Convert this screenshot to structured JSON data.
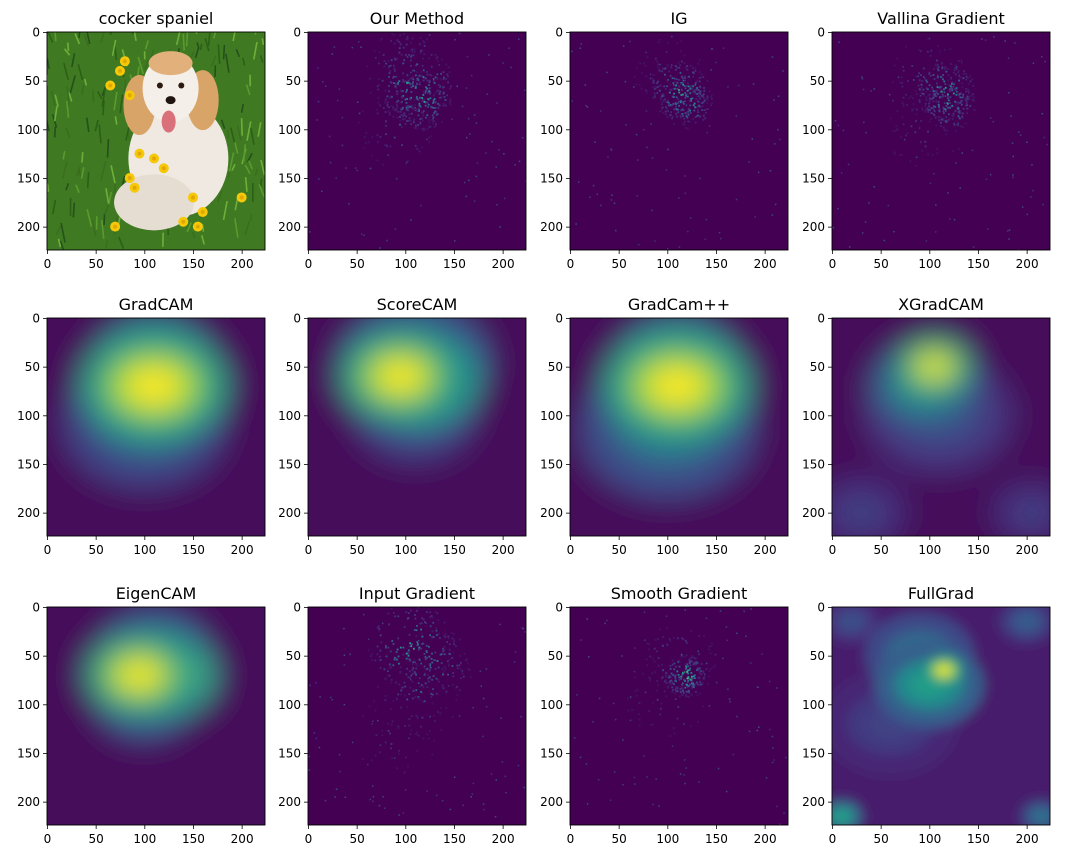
{
  "figure": {
    "panels": [
      {
        "title": "cocker spaniel",
        "kind": "photo"
      },
      {
        "title": "Our Method",
        "kind": "sparse",
        "blobs": [
          [
            110,
            55,
            18,
            0.9
          ],
          [
            115,
            70,
            14,
            0.8
          ],
          [
            100,
            40,
            20,
            0.5
          ],
          [
            90,
            100,
            18,
            0.35
          ]
        ]
      },
      {
        "title": "IG",
        "kind": "sparse",
        "blobs": [
          [
            112,
            60,
            14,
            0.85
          ],
          [
            120,
            72,
            12,
            0.7
          ],
          [
            100,
            40,
            16,
            0.35
          ]
        ]
      },
      {
        "title": "Vallina Gradient",
        "kind": "sparse",
        "blobs": [
          [
            115,
            60,
            14,
            0.9
          ],
          [
            120,
            75,
            12,
            0.7
          ],
          [
            100,
            45,
            18,
            0.4
          ],
          [
            95,
            100,
            18,
            0.25
          ]
        ]
      },
      {
        "title": "GradCAM",
        "kind": "cam",
        "blobs": [
          [
            110,
            70,
            55,
            1.0
          ],
          [
            95,
            80,
            40,
            0.9
          ],
          [
            110,
            45,
            45,
            0.6
          ],
          [
            100,
            110,
            60,
            0.35
          ]
        ]
      },
      {
        "title": "ScoreCAM",
        "kind": "cam",
        "blobs": [
          [
            95,
            60,
            45,
            1.0
          ],
          [
            115,
            65,
            45,
            0.9
          ],
          [
            110,
            45,
            55,
            0.5
          ],
          [
            110,
            100,
            45,
            0.3
          ]
        ]
      },
      {
        "title": "GradCam++",
        "kind": "cam",
        "blobs": [
          [
            110,
            70,
            55,
            1.0
          ],
          [
            95,
            80,
            40,
            0.9
          ],
          [
            110,
            45,
            45,
            0.55
          ],
          [
            100,
            115,
            65,
            0.4
          ]
        ]
      },
      {
        "title": "XGradCAM",
        "kind": "cam",
        "blobs": [
          [
            105,
            50,
            28,
            1.0
          ],
          [
            95,
            70,
            40,
            0.55
          ],
          [
            110,
            100,
            55,
            0.25
          ],
          [
            30,
            200,
            35,
            0.2
          ],
          [
            205,
            200,
            30,
            0.2
          ]
        ]
      },
      {
        "title": "EigenCAM",
        "kind": "cam",
        "blobs": [
          [
            95,
            70,
            40,
            1.0
          ],
          [
            120,
            70,
            40,
            0.95
          ],
          [
            110,
            45,
            40,
            0.45
          ],
          [
            100,
            100,
            35,
            0.4
          ]
        ]
      },
      {
        "title": "Input Gradient",
        "kind": "sparse",
        "blobs": [
          [
            105,
            40,
            20,
            0.8
          ],
          [
            130,
            60,
            18,
            0.6
          ],
          [
            110,
            90,
            20,
            0.4
          ],
          [
            90,
            130,
            20,
            0.25
          ]
        ]
      },
      {
        "title": "Smooth Gradient",
        "kind": "sparse",
        "blobs": [
          [
            118,
            70,
            10,
            0.95
          ],
          [
            110,
            55,
            18,
            0.4
          ],
          [
            100,
            90,
            20,
            0.25
          ]
        ]
      },
      {
        "title": "FullGrad",
        "kind": "smooth",
        "blobs": [
          [
            115,
            65,
            14,
            1.0
          ],
          [
            100,
            80,
            40,
            0.55
          ],
          [
            90,
            50,
            40,
            0.4
          ],
          [
            60,
            120,
            50,
            0.2
          ],
          [
            10,
            215,
            15,
            0.6
          ],
          [
            215,
            215,
            15,
            0.4
          ],
          [
            200,
            15,
            20,
            0.3
          ],
          [
            20,
            15,
            20,
            0.25
          ]
        ]
      }
    ],
    "xticks": [
      "0",
      "50",
      "100",
      "150",
      "200"
    ],
    "yticks": [
      "0",
      "50",
      "100",
      "150",
      "200"
    ]
  },
  "chart_data": {
    "type": "heatmap",
    "grid": {
      "rows": 3,
      "cols": 4
    },
    "image_size": [
      224,
      224
    ],
    "subplot_titles": [
      "cocker spaniel",
      "Our Method",
      "IG",
      "Vallina Gradient",
      "GradCAM",
      "ScoreCAM",
      "GradCam++",
      "XGradCAM",
      "EigenCAM",
      "Input Gradient",
      "Smooth Gradient",
      "FullGrad"
    ],
    "xlim": [
      0,
      224
    ],
    "ylim": [
      224,
      0
    ],
    "xticks": [
      0,
      50,
      100,
      150,
      200
    ],
    "yticks": [
      0,
      50,
      100,
      150,
      200
    ],
    "colormap": "viridis",
    "grid_lines": false
  }
}
